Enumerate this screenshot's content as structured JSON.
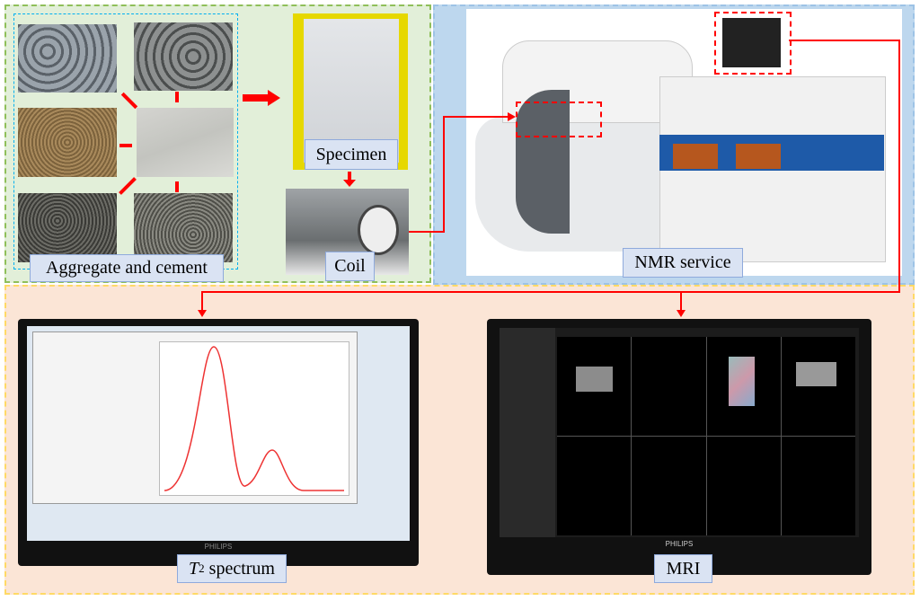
{
  "labels": {
    "aggregate": "Aggregate and cement",
    "specimen": "Specimen",
    "coil": "Coil",
    "nmr": "NMR service",
    "t2_italic": "T",
    "t2_sub": "2",
    "t2_rest": " spectrum",
    "mri": "MRI"
  },
  "colors": {
    "arrow": "#ff0000",
    "green_panel": "#e2efd9",
    "blue_panel": "#bdd7ee",
    "orange_panel": "#fbe5d6",
    "label_bg": "#dae3f3"
  },
  "monitor_brand": "PHILIPS"
}
